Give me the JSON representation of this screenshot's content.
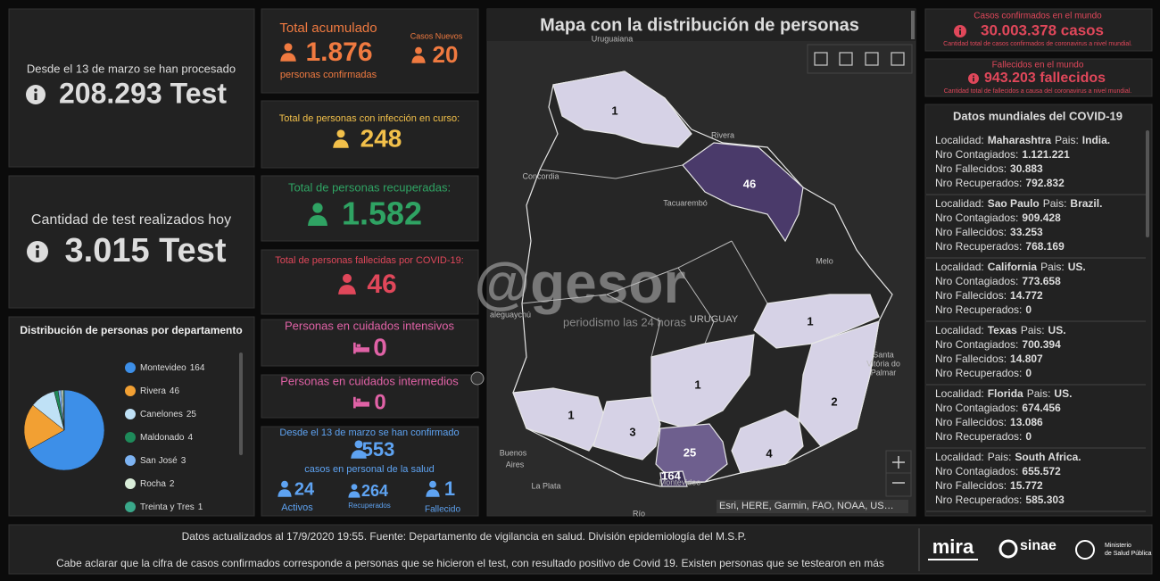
{
  "tests": {
    "total_label": "Desde el 13 de marzo se han procesado",
    "total": "208.293 Test",
    "today_label": "Cantidad de test realizados hoy",
    "today": "3.015 Test"
  },
  "distribution": {
    "title": "Distribución de personas por departamento",
    "type": "pie",
    "categories": [
      "Montevideo",
      "Rivera",
      "Canelones",
      "Maldonado",
      "San José",
      "Rocha",
      "Treinta y Tres"
    ],
    "values": [
      164,
      46,
      25,
      4,
      3,
      2,
      1
    ],
    "colors": [
      "#3d8fe8",
      "#f2a033",
      "#bfe1f6",
      "#1e8a5a",
      "#7db3f2",
      "#d9edd9",
      "#3aa88a"
    ]
  },
  "cases": {
    "total_label": "Total acumulado",
    "total": "1.876",
    "total_sub": "personas confirmadas",
    "new_label": "Casos Nuevos",
    "new": "20",
    "active_label": "Total de personas con infección en curso:",
    "active": "248",
    "recovered_label": "Total de personas recuperadas:",
    "recovered": "1.582",
    "deaths_label": "Total de personas fallecidas por COVID-19:",
    "deaths": "46",
    "icu_label": "Personas en cuidados intensivos",
    "icu": "0",
    "intermediate_label": "Personas en cuidados intermedios",
    "intermediate": "0"
  },
  "health_staff": {
    "intro": "Desde el 13 de marzo se han confirmado",
    "total": "553",
    "sub": "casos en personal de la salud",
    "active": "24",
    "active_label": "Activos",
    "recovered": "264",
    "recovered_label": "Recuperados",
    "deceased": "1",
    "deceased_label": "Fallecido"
  },
  "map": {
    "title": "Mapa con la distribución de personas",
    "counts": [
      "1",
      "46",
      "1",
      "1",
      "2",
      "1",
      "3",
      "25",
      "4",
      "164"
    ],
    "places": [
      "Uruguaiana",
      "Rivera",
      "Concordia",
      "Tacuarembó",
      "Melo",
      "aleguaychú",
      "URUGUAY",
      "Santa",
      "Vitória do",
      "Palmar",
      "Buenos",
      "Aires",
      "La Plata",
      "Montevideo",
      "Río"
    ],
    "attribution": "Esri, HERE, Garmin, FAO, NOAA, US…",
    "watermark": "@gesor",
    "watermark_sub": "periodismo las 24 horas"
  },
  "world": {
    "cases_label": "Casos confirmados en el mundo",
    "cases": "30.003.378 casos",
    "cases_sub": "Cantidad total de casos confirmados de coronavirus a nivel mundial.",
    "deaths_label": "Fallecidos en el mundo",
    "deaths": "943.203 fallecidos",
    "deaths_sub": "Cantidad total de fallecidos a causa del coronavirus a nivel mundial."
  },
  "world_list": {
    "title": "Datos mundiales del COVID-19",
    "labels": {
      "locality": "Localidad:",
      "country": "Pais:",
      "infected": "Nro Contagiados:",
      "deaths": "Nro Fallecidos:",
      "recovered": "Nro Recuperados:"
    },
    "items": [
      {
        "locality": "Maharashtra",
        "country": "India.",
        "infected": "1.121.221",
        "deaths": "30.883",
        "recovered": "792.832"
      },
      {
        "locality": "Sao Paulo",
        "country": "Brazil.",
        "infected": "909.428",
        "deaths": "33.253",
        "recovered": "768.169"
      },
      {
        "locality": "California",
        "country": "US.",
        "infected": "773.658",
        "deaths": "14.772",
        "recovered": "0"
      },
      {
        "locality": "Texas",
        "country": "US.",
        "infected": "700.394",
        "deaths": "14.807",
        "recovered": "0"
      },
      {
        "locality": "Florida",
        "country": "US.",
        "infected": "674.456",
        "deaths": "13.086",
        "recovered": "0"
      },
      {
        "country": "South Africa.",
        "infected": "655.572",
        "deaths": "15.772",
        "recovered": "585.303"
      }
    ]
  },
  "footer": {
    "line1": "Datos actualizados al 17/9/2020 19:55. Fuente: Departamento de vigilancia en salud. División epidemiología del M.S.P.",
    "line2": "Cabe aclarar que la cifra de casos confirmados corresponde a personas que se hicieron el test, con resultado positivo de Covid 19. Existen personas que se testearon en más",
    "logo1": "mira",
    "logo2": "sinae",
    "logo3a": "Ministerio",
    "logo3b": "de Salud Pública"
  }
}
